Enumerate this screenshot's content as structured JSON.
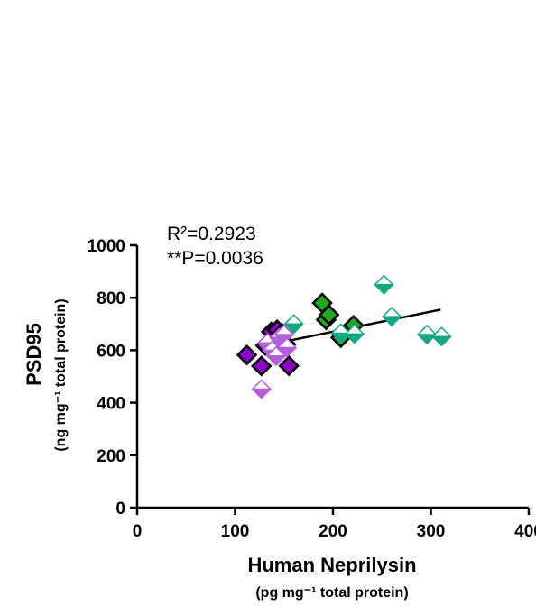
{
  "chart_data": {
    "type": "scatter",
    "title": "",
    "xlabel": "Human Neprilysin",
    "xlabel_sub": "(pg mg⁻¹ total protein)",
    "ylabel": "PSD95",
    "ylabel_sub": "(ng mg⁻¹ total protein)",
    "xlim": [
      0,
      400
    ],
    "ylim": [
      0,
      1000
    ],
    "xticks": [
      "0",
      "100",
      "200",
      "300",
      "400"
    ],
    "yticks": [
      "0",
      "200",
      "400",
      "600",
      "800",
      "1000"
    ],
    "grid": false,
    "legend": "none",
    "annotations": {
      "r2": "R²=0.2923",
      "p": "**P=0.0036"
    },
    "regression": {
      "x": [
        135,
        310
      ],
      "y": [
        621,
        755
      ]
    },
    "series": [
      {
        "marker": "solid-outlined",
        "color": "#8B00C9",
        "x": [
          112,
          127,
          131,
          137,
          143,
          148,
          152,
          155
        ],
        "y": [
          582,
          540,
          618,
          670,
          678,
          665,
          622,
          541
        ]
      },
      {
        "marker": "half-filled",
        "color": "#B45EDC",
        "x": [
          127,
          133,
          138,
          142,
          145,
          150,
          153
        ],
        "y": [
          452,
          628,
          600,
          578,
          648,
          660,
          610
        ]
      },
      {
        "marker": "solid-outlined",
        "color": "#22A81E",
        "x": [
          189,
          193,
          196,
          208,
          221
        ],
        "y": [
          780,
          716,
          735,
          648,
          695
        ]
      },
      {
        "marker": "half-filled",
        "color": "#13A884",
        "x": [
          160,
          208,
          222,
          252,
          260,
          296,
          311
        ],
        "y": [
          700,
          665,
          662,
          850,
          728,
          660,
          652
        ]
      }
    ]
  }
}
